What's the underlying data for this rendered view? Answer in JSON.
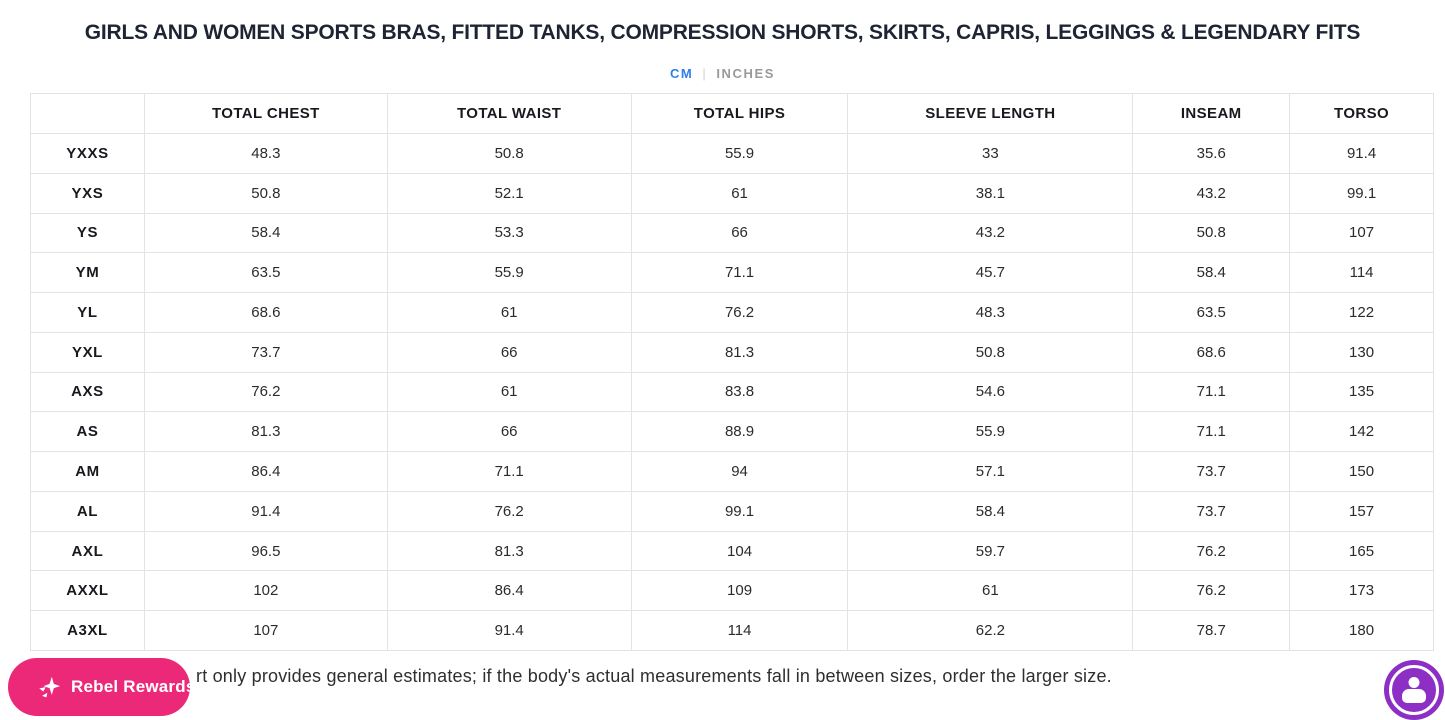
{
  "title": "GIRLS AND WOMEN SPORTS BRAS, FITTED TANKS, COMPRESSION SHORTS, SKIRTS, CAPRIS, LEGGINGS & LEGENDARY FITS",
  "unit_toggle": {
    "cm": "CM",
    "separator": "|",
    "inches": "INCHES",
    "selected": "CM",
    "active_color": "#2f7feb",
    "inactive_color": "#9a9a9a"
  },
  "table": {
    "columns": [
      "",
      "TOTAL CHEST",
      "TOTAL WAIST",
      "TOTAL HIPS",
      "SLEEVE LENGTH",
      "INSEAM",
      "TORSO"
    ],
    "rows": [
      {
        "size": "YXXS",
        "values": [
          "48.3",
          "50.8",
          "55.9",
          "33",
          "35.6",
          "91.4"
        ]
      },
      {
        "size": "YXS",
        "values": [
          "50.8",
          "52.1",
          "61",
          "38.1",
          "43.2",
          "99.1"
        ]
      },
      {
        "size": "YS",
        "values": [
          "58.4",
          "53.3",
          "66",
          "43.2",
          "50.8",
          "107"
        ]
      },
      {
        "size": "YM",
        "values": [
          "63.5",
          "55.9",
          "71.1",
          "45.7",
          "58.4",
          "114"
        ]
      },
      {
        "size": "YL",
        "values": [
          "68.6",
          "61",
          "76.2",
          "48.3",
          "63.5",
          "122"
        ]
      },
      {
        "size": "YXL",
        "values": [
          "73.7",
          "66",
          "81.3",
          "50.8",
          "68.6",
          "130"
        ]
      },
      {
        "size": "AXS",
        "values": [
          "76.2",
          "61",
          "83.8",
          "54.6",
          "71.1",
          "135"
        ]
      },
      {
        "size": "AS",
        "values": [
          "81.3",
          "66",
          "88.9",
          "55.9",
          "71.1",
          "142"
        ]
      },
      {
        "size": "AM",
        "values": [
          "86.4",
          "71.1",
          "94",
          "57.1",
          "73.7",
          "150"
        ]
      },
      {
        "size": "AL",
        "values": [
          "91.4",
          "76.2",
          "99.1",
          "58.4",
          "73.7",
          "157"
        ]
      },
      {
        "size": "AXL",
        "values": [
          "96.5",
          "81.3",
          "104",
          "59.7",
          "76.2",
          "165"
        ]
      },
      {
        "size": "AXXL",
        "values": [
          "102",
          "86.4",
          "109",
          "61",
          "76.2",
          "173"
        ]
      },
      {
        "size": "A3XL",
        "values": [
          "107",
          "91.4",
          "114",
          "62.2",
          "78.7",
          "180"
        ]
      }
    ]
  },
  "footer_note": "rt only provides general estimates; if the body's actual measurements fall in between sizes, order the larger size.",
  "rewards_badge": {
    "label": "Rebel Rewards",
    "icon": "sparkle-star-icon",
    "color": "#ec2979"
  },
  "accessibility_widget": {
    "icon": "person-in-circle-icon",
    "color": "#8d2ec4"
  }
}
